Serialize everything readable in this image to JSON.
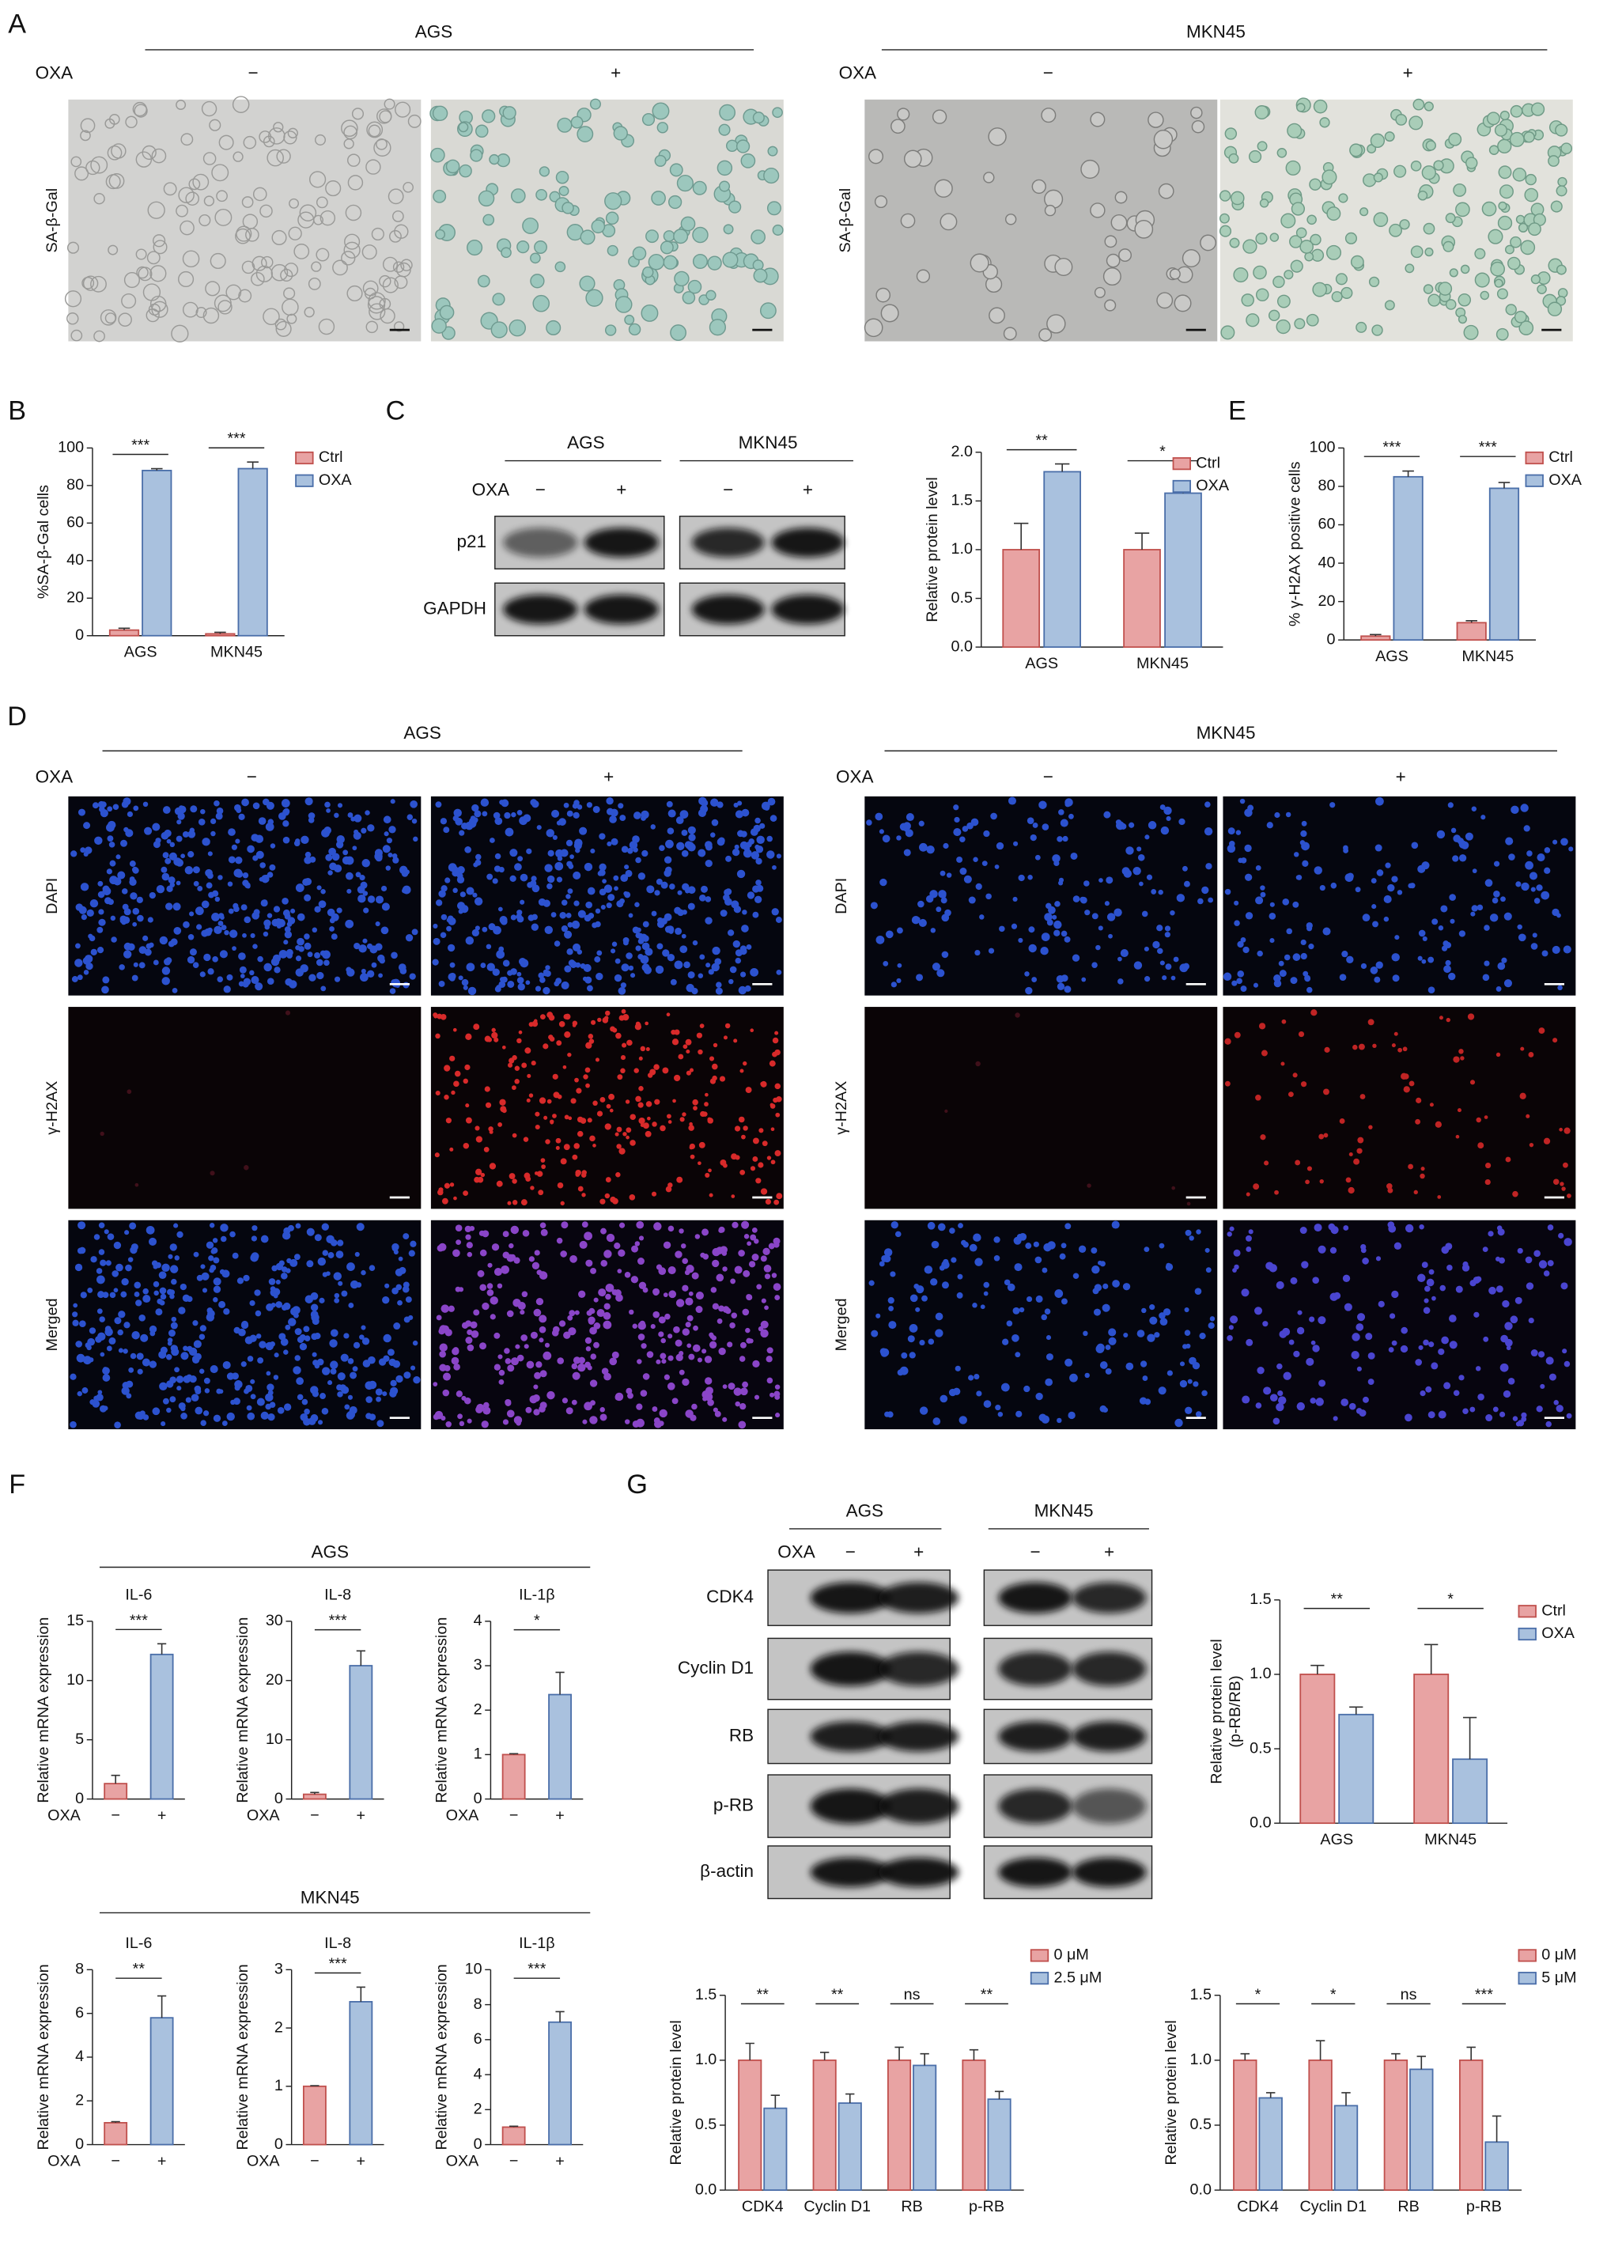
{
  "panel_labels": [
    "A",
    "B",
    "C",
    "D",
    "E",
    "F",
    "G"
  ],
  "panel_a": {
    "treatment": "OXA",
    "row_label": "SA-β-Gal",
    "groups": [
      {
        "title": "AGS",
        "conditions": [
          "−",
          "+"
        ]
      },
      {
        "title": "MKN45",
        "conditions": [
          "−",
          "+"
        ]
      }
    ]
  },
  "panel_d": {
    "treatment": "OXA",
    "rows": [
      "DAPI",
      "γ-H2AX",
      "Merged"
    ],
    "groups": [
      {
        "title": "AGS",
        "conditions": [
          "−",
          "+"
        ]
      },
      {
        "title": "MKN45",
        "conditions": [
          "−",
          "+"
        ]
      }
    ]
  },
  "panel_c_blot": {
    "treatment": "OXA",
    "rows": [
      "p21",
      "GAPDH"
    ],
    "groups": [
      {
        "title": "AGS",
        "conditions": [
          "−",
          "+"
        ]
      },
      {
        "title": "MKN45",
        "conditions": [
          "−",
          "+"
        ]
      }
    ]
  },
  "panel_g_blot": {
    "treatment": "OXA",
    "rows": [
      "CDK4",
      "Cyclin D1",
      "RB",
      "p-RB",
      "β-actin"
    ],
    "groups": [
      {
        "title": "AGS",
        "conditions": [
          "−",
          "+"
        ]
      },
      {
        "title": "MKN45",
        "conditions": [
          "−",
          "+"
        ]
      }
    ]
  },
  "panel_f": {
    "groups": [
      "AGS",
      "MKN45"
    ]
  },
  "chart_data": [
    {
      "type": "bar",
      "ylabel": "%SA-β-Gal cells",
      "categories": [
        "AGS",
        "MKN45"
      ],
      "ylim": [
        0,
        100
      ],
      "yticks": [
        0,
        20,
        40,
        60,
        80,
        100
      ],
      "series": [
        {
          "name": "Ctrl",
          "color": "#e8a3a3",
          "values": [
            3,
            1
          ],
          "errors": [
            1,
            0.8
          ]
        },
        {
          "name": "OXA",
          "color": "#a9c1de",
          "values": [
            88,
            89
          ],
          "errors": [
            1,
            3.5
          ]
        }
      ],
      "significance": [
        "***",
        "***"
      ]
    },
    {
      "type": "bar",
      "ylabel": "Relative protein level",
      "categories": [
        "AGS",
        "MKN45"
      ],
      "ylim": [
        0,
        2
      ],
      "yticks": [
        {
          "value": 0,
          "label": "0.0"
        },
        0.5,
        {
          "value": 1,
          "label": "1.0"
        },
        1.5,
        {
          "value": 2,
          "label": "2.0"
        }
      ],
      "series": [
        {
          "name": "Ctrl",
          "color": "#e8a3a3",
          "values": [
            1.0,
            1.0
          ],
          "errors": [
            0.27,
            0.17
          ]
        },
        {
          "name": "OXA",
          "color": "#a9c1de",
          "values": [
            1.8,
            1.58
          ],
          "errors": [
            0.08,
            0.05
          ]
        }
      ],
      "significance": [
        "**",
        "*"
      ]
    },
    {
      "type": "bar",
      "ylabel": "% γ-H2AX positive cells",
      "categories": [
        "AGS",
        "MKN45"
      ],
      "ylim": [
        0,
        100
      ],
      "yticks": [
        0,
        20,
        40,
        60,
        80,
        100
      ],
      "series": [
        {
          "name": "Ctrl",
          "color": "#e8a3a3",
          "values": [
            2,
            9
          ],
          "errors": [
            0.8,
            1
          ]
        },
        {
          "name": "OXA",
          "color": "#a9c1de",
          "values": [
            85,
            79
          ],
          "errors": [
            3,
            3
          ]
        }
      ],
      "significance": [
        "***",
        "***"
      ]
    },
    {
      "type": "bar",
      "title": "IL-6",
      "ylabel": "Relative mRNA expression",
      "xlabel": "OXA",
      "categories": [
        "−",
        "+"
      ],
      "values": [
        1.3,
        12.2
      ],
      "errors": [
        0.7,
        0.9
      ],
      "colors": [
        "#e8a3a3",
        "#a9c1de"
      ],
      "ylim": [
        0,
        15
      ],
      "yticks": [
        0,
        5,
        10,
        15
      ],
      "significance": [
        "***"
      ]
    },
    {
      "type": "bar",
      "title": "IL-8",
      "ylabel": "Relative mRNA expression",
      "xlabel": "OXA",
      "categories": [
        "−",
        "+"
      ],
      "values": [
        0.8,
        22.5
      ],
      "errors": [
        0.3,
        2.5
      ],
      "colors": [
        "#e8a3a3",
        "#a9c1de"
      ],
      "ylim": [
        0,
        30
      ],
      "yticks": [
        0,
        10,
        20,
        30
      ],
      "significance": [
        "***"
      ]
    },
    {
      "type": "bar",
      "title": "IL-1β",
      "ylabel": "Relative mRNA expression",
      "xlabel": "OXA",
      "categories": [
        "−",
        "+"
      ],
      "values": [
        1.0,
        2.35
      ],
      "errors": [
        0.02,
        0.5
      ],
      "colors": [
        "#e8a3a3",
        "#a9c1de"
      ],
      "ylim": [
        0,
        4
      ],
      "yticks": [
        0,
        1,
        2,
        3,
        4
      ],
      "significance": [
        "*"
      ]
    },
    {
      "type": "bar",
      "title": "IL-6",
      "ylabel": "Relative mRNA expression",
      "xlabel": "OXA",
      "categories": [
        "−",
        "+"
      ],
      "values": [
        1.0,
        5.8
      ],
      "errors": [
        0.05,
        1.0
      ],
      "colors": [
        "#e8a3a3",
        "#a9c1de"
      ],
      "ylim": [
        0,
        8
      ],
      "yticks": [
        0,
        2,
        4,
        6,
        8
      ],
      "significance": [
        "**"
      ]
    },
    {
      "type": "bar",
      "title": "IL-8",
      "ylabel": "Relative mRNA expression",
      "xlabel": "OXA",
      "categories": [
        "−",
        "+"
      ],
      "values": [
        1.0,
        2.45
      ],
      "errors": [
        0.01,
        0.25
      ],
      "colors": [
        "#e8a3a3",
        "#a9c1de"
      ],
      "ylim": [
        0,
        3
      ],
      "yticks": [
        0,
        1,
        2,
        3
      ],
      "significance": [
        "***"
      ]
    },
    {
      "type": "bar",
      "title": "IL-1β",
      "ylabel": "Relative mRNA expression",
      "xlabel": "OXA",
      "categories": [
        "−",
        "+"
      ],
      "values": [
        1.0,
        7.0
      ],
      "errors": [
        0.05,
        0.6
      ],
      "colors": [
        "#e8a3a3",
        "#a9c1de"
      ],
      "ylim": [
        0,
        10
      ],
      "yticks": [
        0,
        2,
        4,
        6,
        8,
        10
      ],
      "significance": [
        "***"
      ]
    },
    {
      "type": "bar",
      "ylabel": [
        "Relative protein level",
        "(p-RB/RB)"
      ],
      "categories": [
        "AGS",
        "MKN45"
      ],
      "ylim": [
        0,
        1.5
      ],
      "yticks": [
        {
          "value": 0,
          "label": "0.0"
        },
        0.5,
        {
          "value": 1,
          "label": "1.0"
        },
        1.5
      ],
      "series": [
        {
          "name": "Ctrl",
          "color": "#e8a3a3",
          "values": [
            1.0,
            1.0
          ],
          "errors": [
            0.06,
            0.2
          ]
        },
        {
          "name": "OXA",
          "color": "#a9c1de",
          "values": [
            0.73,
            0.43
          ],
          "errors": [
            0.05,
            0.28
          ]
        }
      ],
      "significance": [
        "**",
        "*"
      ]
    },
    {
      "type": "bar",
      "ylabel": "Relative protein level",
      "categories": [
        "CDK4",
        "Cyclin D1",
        "RB",
        "p-RB"
      ],
      "ylim": [
        0,
        1.5
      ],
      "yticks": [
        {
          "value": 0,
          "label": "0.0"
        },
        0.5,
        {
          "value": 1,
          "label": "1.0"
        },
        1.5
      ],
      "series": [
        {
          "name": "0 μM",
          "color": "#e8a3a3",
          "values": [
            1,
            1,
            1,
            1
          ],
          "errors": [
            0.13,
            0.06,
            0.1,
            0.08
          ]
        },
        {
          "name": "2.5 μM",
          "color": "#a9c1de",
          "values": [
            0.63,
            0.67,
            0.96,
            0.7
          ],
          "errors": [
            0.1,
            0.07,
            0.09,
            0.06
          ]
        }
      ],
      "significance": [
        "**",
        "**",
        "ns",
        "**"
      ]
    },
    {
      "type": "bar",
      "ylabel": "Relative protein level",
      "categories": [
        "CDK4",
        "Cyclin D1",
        "RB",
        "p-RB"
      ],
      "ylim": [
        0,
        1.5
      ],
      "yticks": [
        {
          "value": 0,
          "label": "0.0"
        },
        0.5,
        {
          "value": 1,
          "label": "1.0"
        },
        1.5
      ],
      "series": [
        {
          "name": "0 μM",
          "color": "#e8a3a3",
          "values": [
            1,
            1,
            1,
            1
          ],
          "errors": [
            0.05,
            0.15,
            0.05,
            0.1
          ]
        },
        {
          "name": "5 μM",
          "color": "#a9c1de",
          "values": [
            0.71,
            0.65,
            0.93,
            0.37
          ],
          "errors": [
            0.04,
            0.1,
            0.1,
            0.2
          ]
        }
      ],
      "significance": [
        "*",
        "*",
        "ns",
        "***"
      ]
    }
  ]
}
